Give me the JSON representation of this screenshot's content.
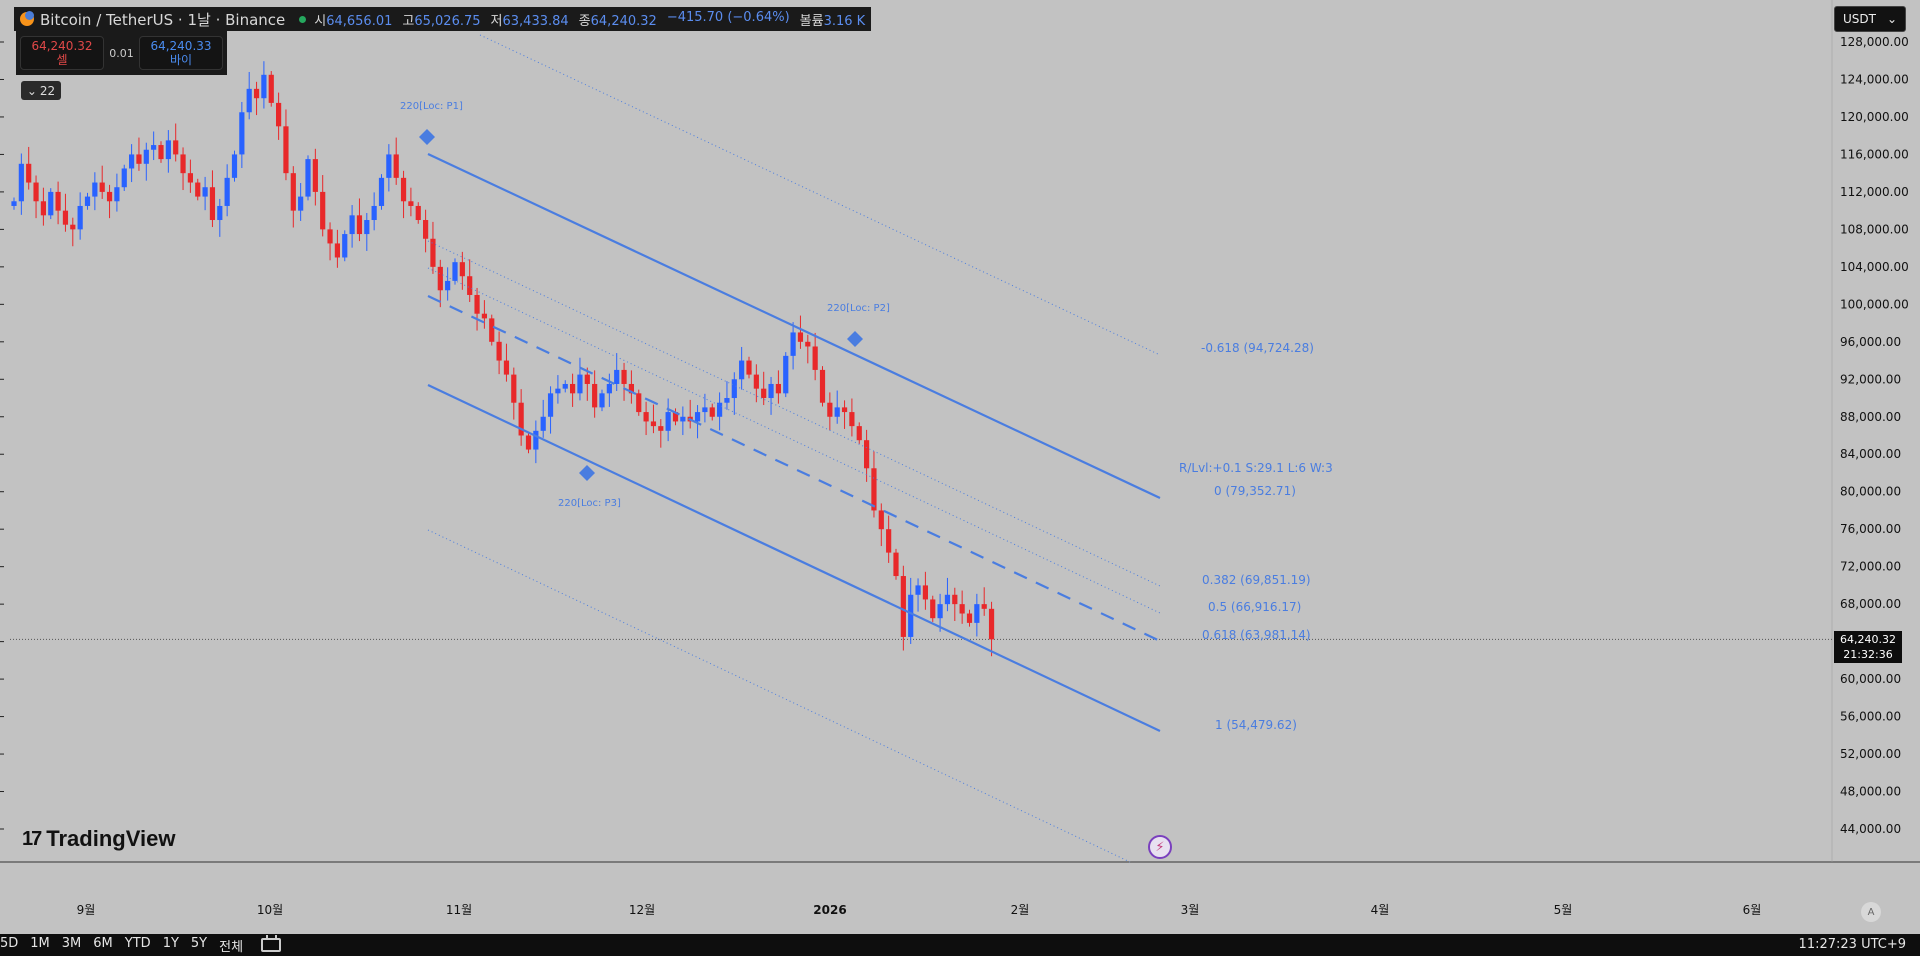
{
  "header": {
    "symbol": "Bitcoin / TetherUS · 1날 · Binance",
    "ohlc": [
      {
        "label": "시",
        "value": "64,656.01"
      },
      {
        "label": "고",
        "value": "65,026.75"
      },
      {
        "label": "저",
        "value": "63,433.84"
      },
      {
        "label": "종",
        "value": "64,240.32"
      }
    ],
    "change": "−415.70 (−0.64%)",
    "volume_label": "볼륨",
    "volume_value": "3.16 K"
  },
  "trade": {
    "sell_price": "64,240.32",
    "sell_label": "셀",
    "spread": "0.01",
    "buy_price": "64,240.33",
    "buy_label": "바이"
  },
  "indicators": {
    "count": "22"
  },
  "currency": {
    "value": "USDT"
  },
  "last_price": {
    "price": "64,240.32",
    "countdown": "21:32:36"
  },
  "brand": {
    "name": "TradingView"
  },
  "bottom": {
    "periods": [
      "5D",
      "1M",
      "3M",
      "6M",
      "YTD",
      "1Y",
      "5Y",
      "전체"
    ],
    "clock": "11:27:23 UTC+9",
    "auto_label": "A"
  },
  "annotations": {
    "p1": "220[Loc: P1]",
    "p2": "220[Loc: P2]",
    "p3": "220[Loc: P3]",
    "fib_neg618": "-0.618 (94,724.28)",
    "rlvl": "R/Lvl:+0.1 S:29.1 L:6 W:3",
    "fib_0": "0 (79,352.71)",
    "fib_382": "0.382 (69,851.19)",
    "fib_5": "0.5 (66,916.17)",
    "fib_618": "0.618 (63,981.14)",
    "fib_1": "1 (54,479.62)"
  },
  "colors": {
    "up": "#2962ff",
    "down": "#e8282a",
    "channel": "#4a7de0"
  },
  "chart_data": {
    "type": "candlestick",
    "y_ticks": [
      "128,000.00",
      "124,000.00",
      "120,000.00",
      "116,000.00",
      "112,000.00",
      "108,000.00",
      "104,000.00",
      "100,000.00",
      "96,000.00",
      "92,000.00",
      "88,000.00",
      "84,000.00",
      "80,000.00",
      "76,000.00",
      "72,000.00",
      "68,000.00",
      "64,000.00",
      "60,000.00",
      "56,000.00",
      "52,000.00",
      "48,000.00",
      "44,000.00"
    ],
    "x_ticks": [
      "9월",
      "10월",
      "11월",
      "12월",
      "2026",
      "2월",
      "3월",
      "4월",
      "5월",
      "6월"
    ],
    "ylim": [
      40000,
      130000
    ],
    "close_series": [
      111000,
      115000,
      113000,
      111000,
      109500,
      112000,
      110000,
      108500,
      108000,
      110500,
      111500,
      113000,
      112000,
      111000,
      112500,
      114500,
      116000,
      115000,
      116500,
      117000,
      115500,
      117500,
      116000,
      114000,
      113000,
      111500,
      112500,
      109000,
      110500,
      113500,
      116000,
      120500,
      123000,
      122000,
      124500,
      121500,
      119000,
      114000,
      110000,
      111500,
      115500,
      112000,
      108000,
      106500,
      105000,
      107500,
      109500,
      107500,
      109000,
      110500,
      113500,
      116000,
      113500,
      111000,
      110500,
      109000,
      107000,
      104000,
      101500,
      102500,
      104500,
      103000,
      101000,
      99000,
      98500,
      96000,
      94000,
      92500,
      89500,
      86000,
      84500,
      86500,
      88000,
      90500,
      91000,
      91500,
      90500,
      92500,
      91500,
      89000,
      90500,
      91500,
      93000,
      91500,
      90500,
      88500,
      87500,
      87000,
      86500,
      88500,
      87500,
      88000,
      87500,
      88500,
      89000,
      88000,
      89500,
      90000,
      92000,
      94000,
      92500,
      91000,
      90000,
      91500,
      90500,
      94500,
      97000,
      96000,
      95500,
      93000,
      89500,
      88000,
      89000,
      88500,
      87000,
      85500,
      82500,
      78000,
      76000,
      73500,
      71000,
      64500,
      69000,
      70000,
      68500,
      66500,
      68000,
      69000,
      68000,
      67000,
      66000,
      68000,
      67500,
      64240
    ],
    "channel": {
      "p1": {
        "date_index": 55,
        "price": 116000
      },
      "p2": {
        "date_index": 109,
        "price": 95500
      },
      "p3": {
        "date_index": 76,
        "price": 82500
      }
    }
  }
}
